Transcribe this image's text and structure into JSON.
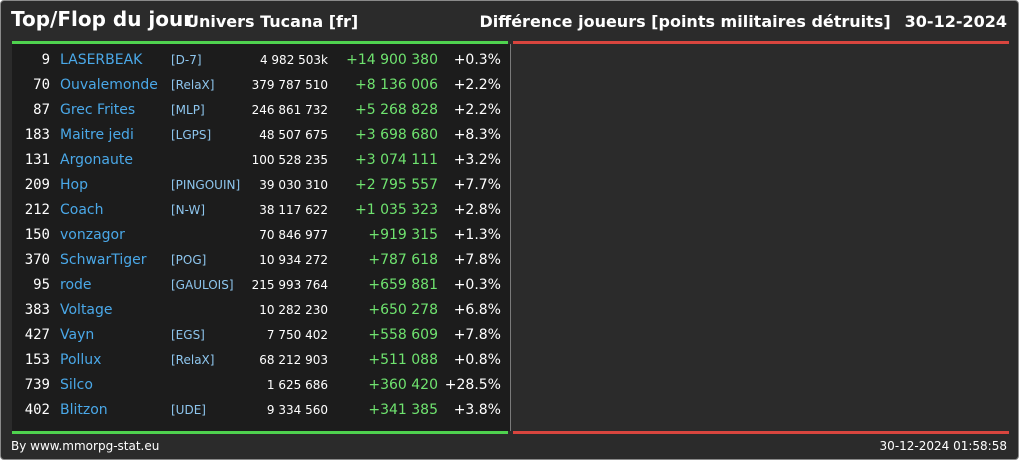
{
  "header": {
    "title": "Top/Flop du jour",
    "universe": "Univers Tucana [fr]",
    "metric": "Différence joueurs [points militaires détruits]",
    "date": "30-12-2024"
  },
  "colors": {
    "background": "#2b2b2b",
    "panel": "#1c1c1c",
    "top_bar": "#4fd24f",
    "flop_bar": "#d8453e",
    "player_name": "#4aa8e8",
    "alliance_tag": "#8ec6ee",
    "positive_diff": "#6fe36f"
  },
  "top_rows": [
    {
      "rank": "9",
      "name": "LASERBEAK",
      "tag": "[D-7]",
      "points": "4 982 503k",
      "diff": "+14 900 380",
      "pct": "+0.3%"
    },
    {
      "rank": "70",
      "name": "Ouvalemonde",
      "tag": "[RelaX]",
      "points": "379 787 510",
      "diff": "+8 136 006",
      "pct": "+2.2%"
    },
    {
      "rank": "87",
      "name": "Grec Frites",
      "tag": "[MLP]",
      "points": "246 861 732",
      "diff": "+5 268 828",
      "pct": "+2.2%"
    },
    {
      "rank": "183",
      "name": "Maitre jedi",
      "tag": "[LGPS]",
      "points": "48 507 675",
      "diff": "+3 698 680",
      "pct": "+8.3%"
    },
    {
      "rank": "131",
      "name": "Argonaute",
      "tag": "",
      "points": "100 528 235",
      "diff": "+3 074 111",
      "pct": "+3.2%"
    },
    {
      "rank": "209",
      "name": "Hop",
      "tag": "[PINGOUIN]",
      "points": "39 030 310",
      "diff": "+2 795 557",
      "pct": "+7.7%"
    },
    {
      "rank": "212",
      "name": "Coach",
      "tag": "[N-W]",
      "points": "38 117 622",
      "diff": "+1 035 323",
      "pct": "+2.8%"
    },
    {
      "rank": "150",
      "name": "vonzagor",
      "tag": "",
      "points": "70 846 977",
      "diff": "+919 315",
      "pct": "+1.3%"
    },
    {
      "rank": "370",
      "name": "SchwarTiger",
      "tag": "[POG]",
      "points": "10 934 272",
      "diff": "+787 618",
      "pct": "+7.8%"
    },
    {
      "rank": "95",
      "name": "rode",
      "tag": "[GAULOIS]",
      "points": "215 993 764",
      "diff": "+659 881",
      "pct": "+0.3%"
    },
    {
      "rank": "383",
      "name": "Voltage",
      "tag": "",
      "points": "10 282 230",
      "diff": "+650 278",
      "pct": "+6.8%"
    },
    {
      "rank": "427",
      "name": "Vayn",
      "tag": "[EGS]",
      "points": "7 750 402",
      "diff": "+558 609",
      "pct": "+7.8%"
    },
    {
      "rank": "153",
      "name": "Pollux",
      "tag": "[RelaX]",
      "points": "68 212 903",
      "diff": "+511 088",
      "pct": "+0.8%"
    },
    {
      "rank": "739",
      "name": "Silco",
      "tag": "",
      "points": "1 625 686",
      "diff": "+360 420",
      "pct": "+28.5%"
    },
    {
      "rank": "402",
      "name": "Blitzon",
      "tag": "[UDE]",
      "points": "9 334 560",
      "diff": "+341 385",
      "pct": "+3.8%"
    }
  ],
  "footer": {
    "credit": "By www.mmorpg-stat.eu",
    "timestamp": "30-12-2024 01:58:58"
  }
}
